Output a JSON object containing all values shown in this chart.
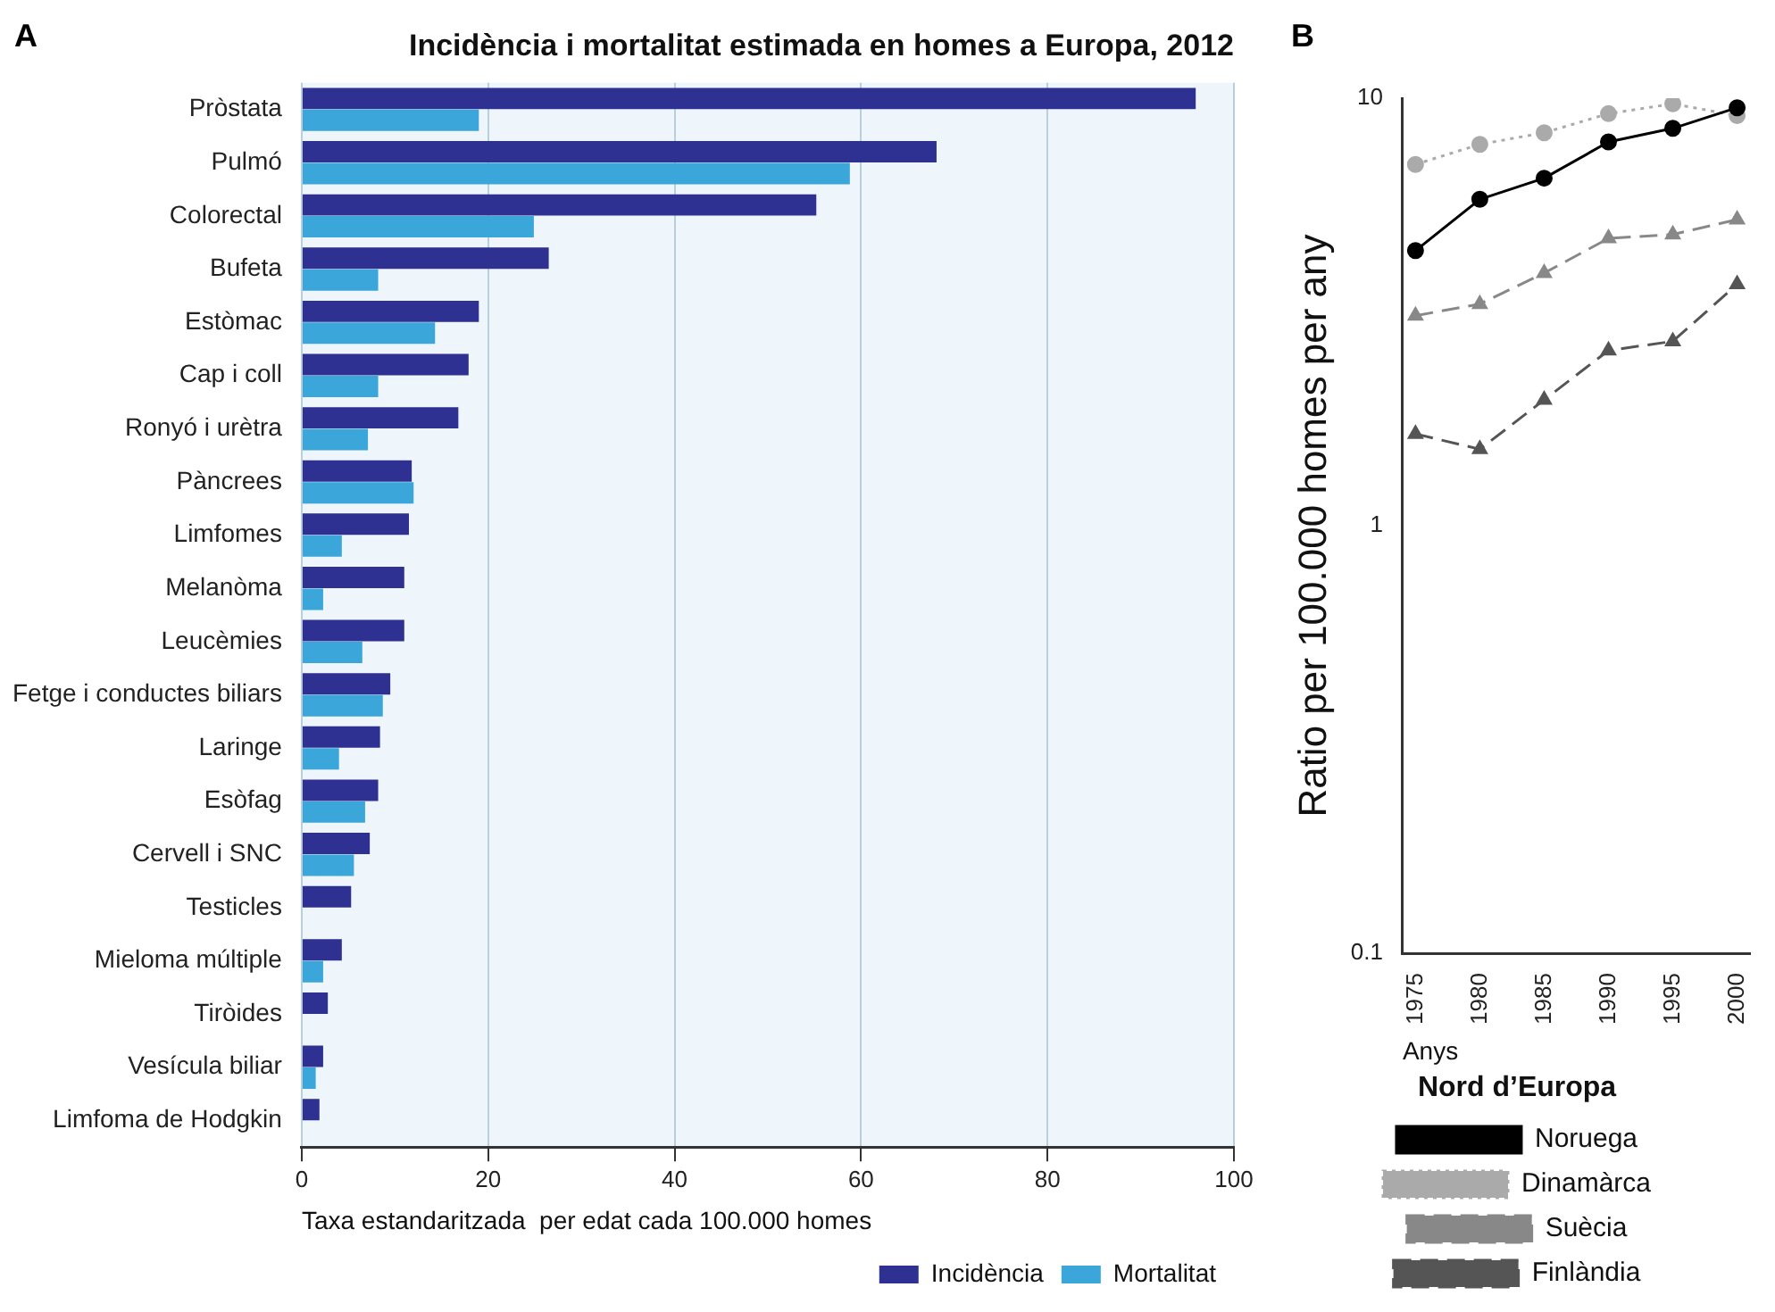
{
  "chart_data": [
    {
      "type": "bar",
      "orientation": "horizontal",
      "title": "Incidència i mortalitat estimada en homes a Europa, 2012",
      "annotations": [
        "A"
      ],
      "xlabel": "Taxa estandaritzada  per edat cada 100.000 homes",
      "categories": [
        "Pròstata",
        "Pulmó",
        "Colorectal",
        "Bufeta",
        "Estòmac",
        "Cap i coll",
        "Ronyó i urètra",
        "Pàncrees",
        "Limfomes",
        "Melanòma",
        "Leucèmies",
        "Fetge i conductes biliars",
        "Laringe",
        "Esòfag",
        "Cervell i SNC",
        "Testicles",
        "Mieloma múltiple",
        "Tiròides",
        "Vesícula biliar",
        "Limfoma de Hodgkin"
      ],
      "series": [
        {
          "name": "Incidència",
          "color": "#2e3192",
          "values": [
            95.9,
            68.1,
            55.2,
            26.5,
            19.0,
            17.9,
            16.8,
            11.8,
            11.5,
            11.0,
            11.0,
            9.5,
            8.4,
            8.2,
            7.3,
            5.3,
            4.3,
            2.8,
            2.3,
            1.9
          ]
        },
        {
          "name": "Mortalitat",
          "color": "#3ba6d9",
          "values": [
            19.0,
            58.8,
            24.9,
            8.2,
            14.3,
            8.2,
            7.1,
            12.0,
            4.3,
            2.3,
            6.5,
            8.7,
            4.0,
            6.8,
            5.6,
            null,
            2.3,
            null,
            1.5,
            null
          ]
        }
      ],
      "xlim": [
        0,
        100
      ],
      "xticks": [
        0,
        20,
        40,
        60,
        80,
        100
      ],
      "grid": "x",
      "legend": "bottom right"
    },
    {
      "type": "line",
      "annotations": [
        "B"
      ],
      "ylabel": "Ratio per 100.000 homes per any",
      "xlabel": "Anys",
      "legend_title": "Nord d’Europa",
      "log": "y",
      "x": [
        1975,
        1980,
        1985,
        1990,
        1995,
        2000
      ],
      "series": [
        {
          "name": "Noruega",
          "color": "#000000",
          "marker": "circle",
          "line_style": "solid",
          "values": [
            4.4,
            5.8,
            6.5,
            7.9,
            8.5,
            9.5
          ]
        },
        {
          "name": "Dinamàrca",
          "color": "#aaaaaa",
          "marker": "circle",
          "line_style": "dotted",
          "values": [
            7.0,
            7.8,
            8.3,
            9.2,
            9.7,
            9.1
          ]
        },
        {
          "name": "Suècia",
          "color": "#888888",
          "marker": "triangle",
          "line_style": "dashed",
          "values": [
            3.1,
            3.3,
            3.9,
            4.7,
            4.8,
            5.2
          ]
        },
        {
          "name": "Finlàndia",
          "color": "#555555",
          "marker": "triangle",
          "line_style": "dashed",
          "values": [
            1.64,
            1.51,
            1.97,
            2.57,
            2.7,
            3.67
          ]
        }
      ],
      "xlim": [
        1974,
        2001
      ],
      "xticks": [
        1975,
        1980,
        1985,
        1990,
        1995,
        2000
      ],
      "ylim": [
        0.1,
        10
      ],
      "yticks": [
        0.1,
        1,
        10
      ],
      "legend": "bottom"
    }
  ]
}
